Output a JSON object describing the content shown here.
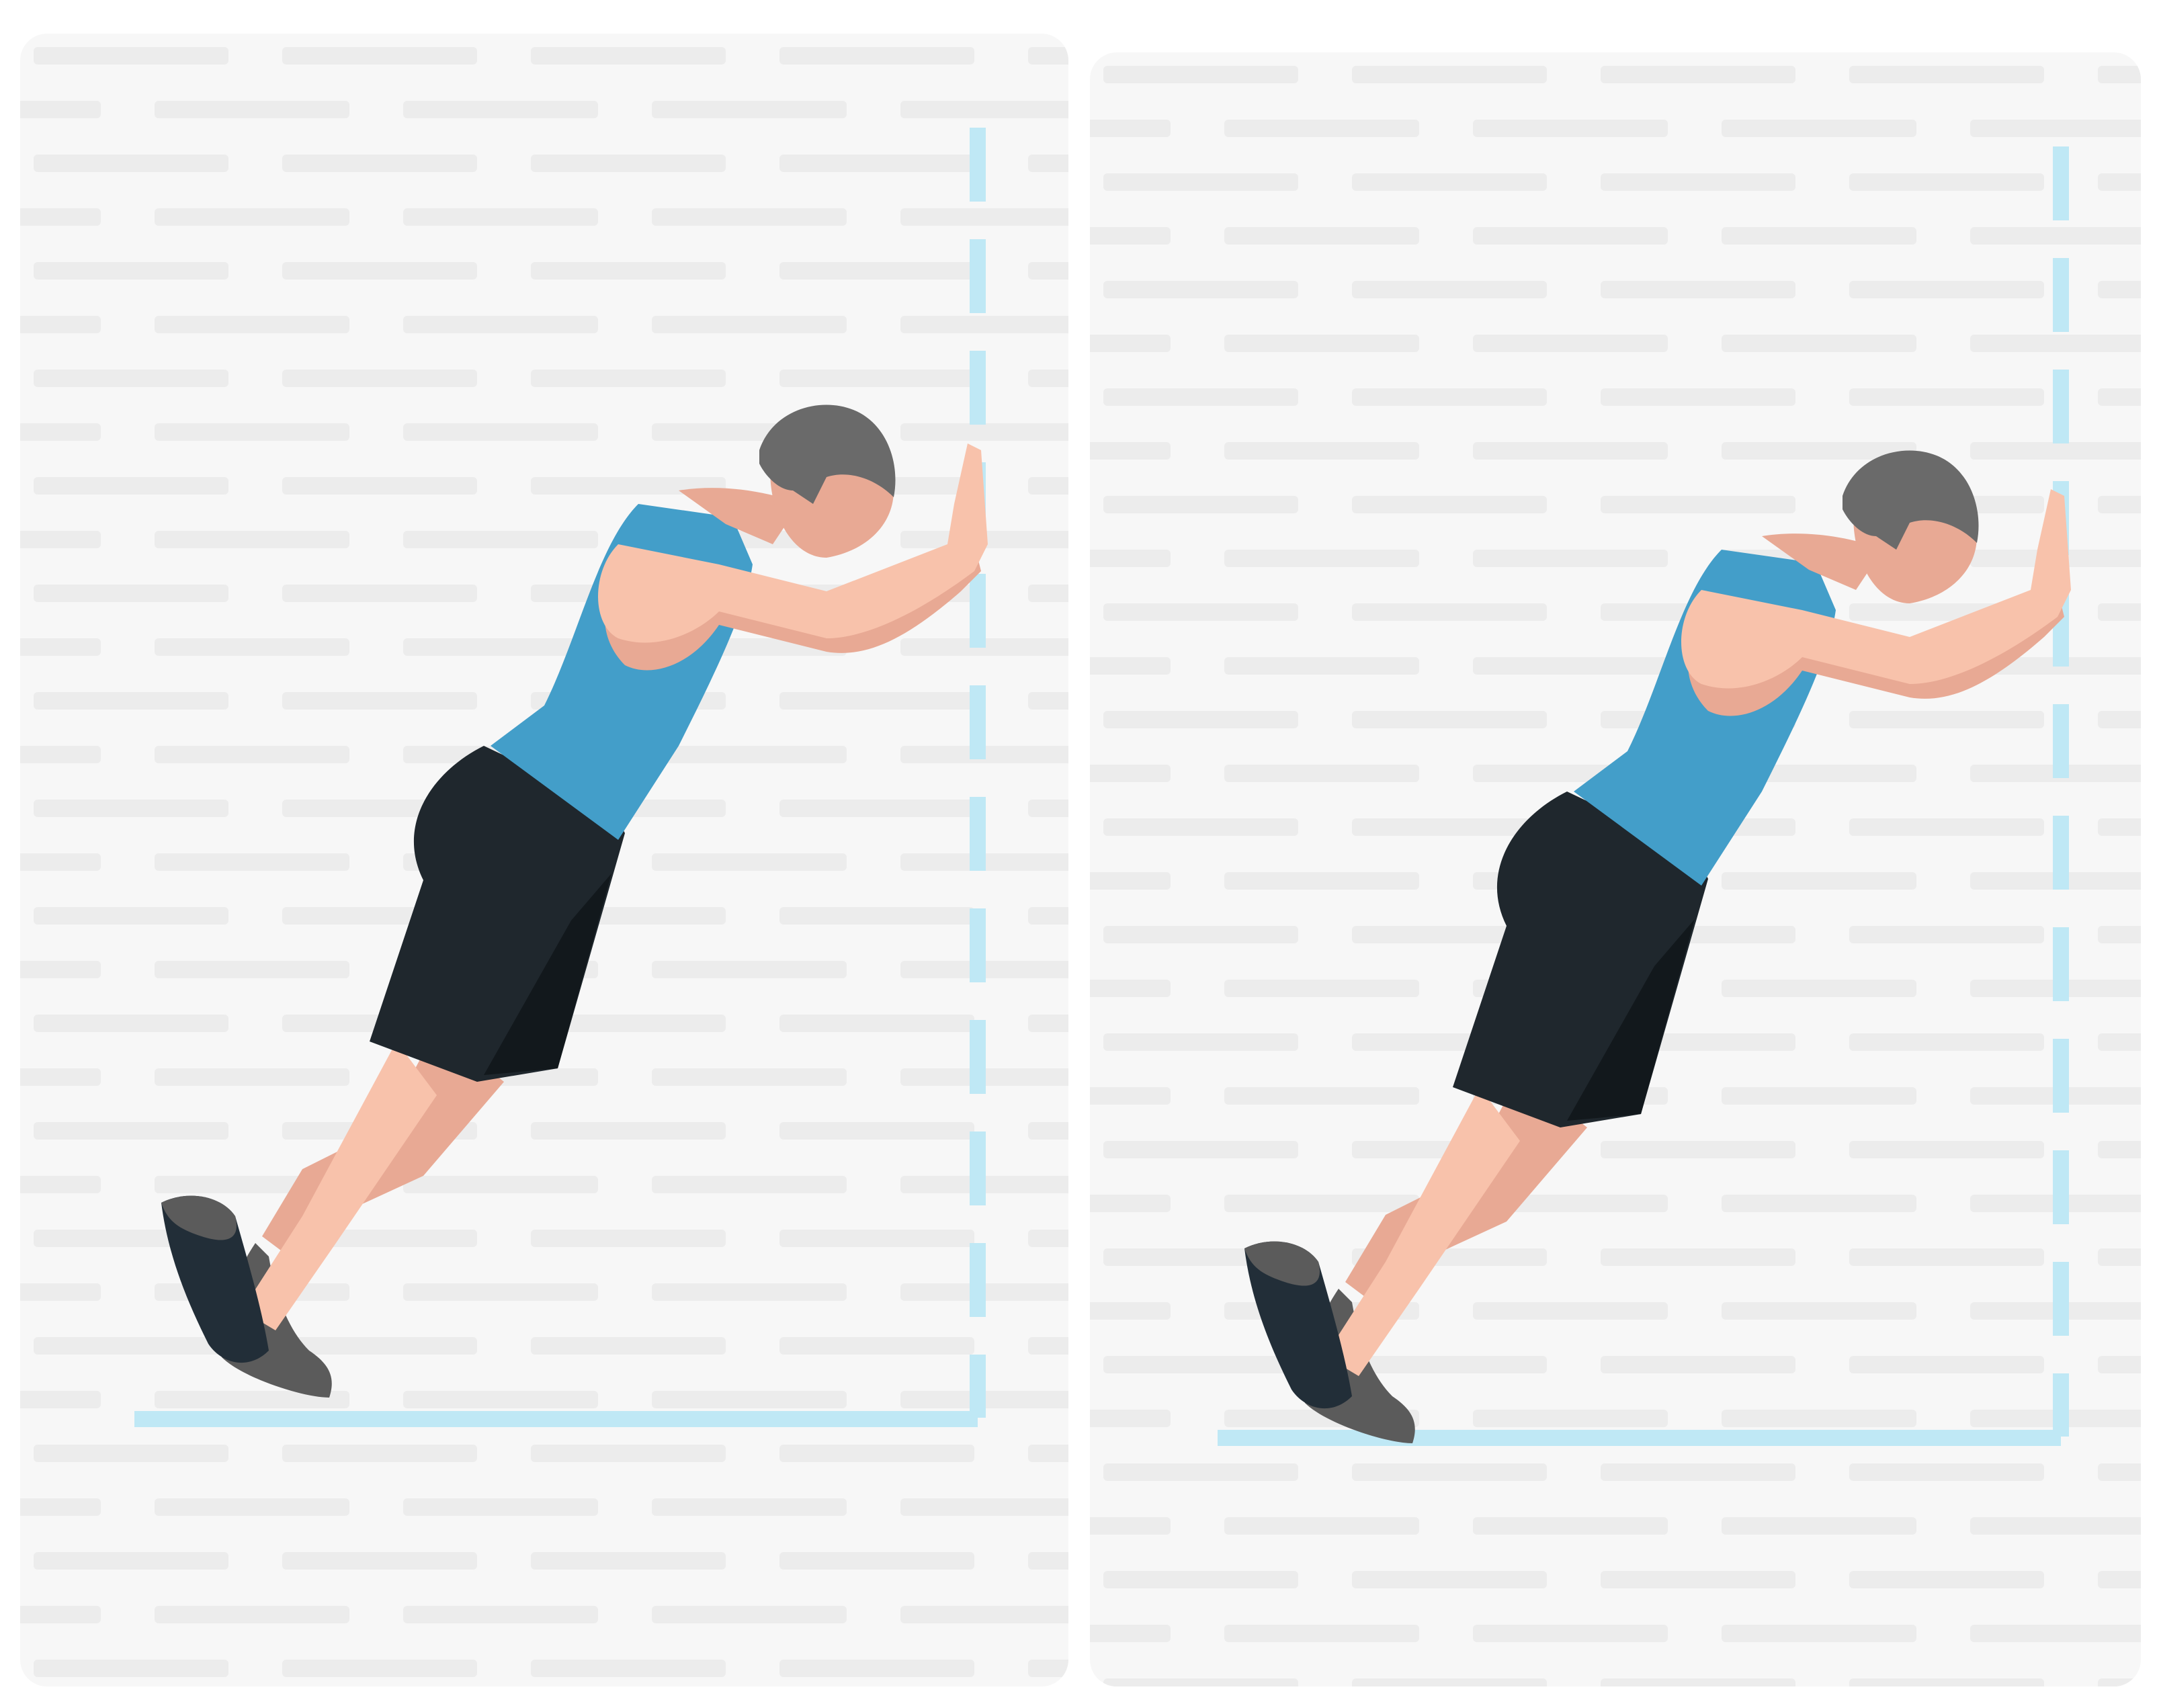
{
  "images": [
    {
      "name": "left-illustration",
      "subject": "man-pushing-against-wall",
      "colors": {
        "background": "#f7f7f7",
        "skin": "#f8c2ab",
        "skin_shadow": "#e8a994",
        "hair": "#6a6a6a",
        "tank_top": "#439ec9",
        "shorts": "#1f272d",
        "shorts_shadow": "#12181c",
        "shoe": "#5b5b5b",
        "shoe_dark": "#222e38",
        "wall_line": "#bfe8f5"
      }
    },
    {
      "name": "right-illustration",
      "subject": "man-pushing-against-wall",
      "colors": {
        "background": "#f7f7f7",
        "skin": "#f8c2ab",
        "skin_shadow": "#e8a994",
        "hair": "#6a6a6a",
        "tank_top": "#439ec9",
        "shorts": "#1f272d",
        "shorts_shadow": "#12181c",
        "shoe": "#5b5b5b",
        "shoe_dark": "#222e38",
        "wall_line": "#bfe8f5"
      }
    }
  ]
}
